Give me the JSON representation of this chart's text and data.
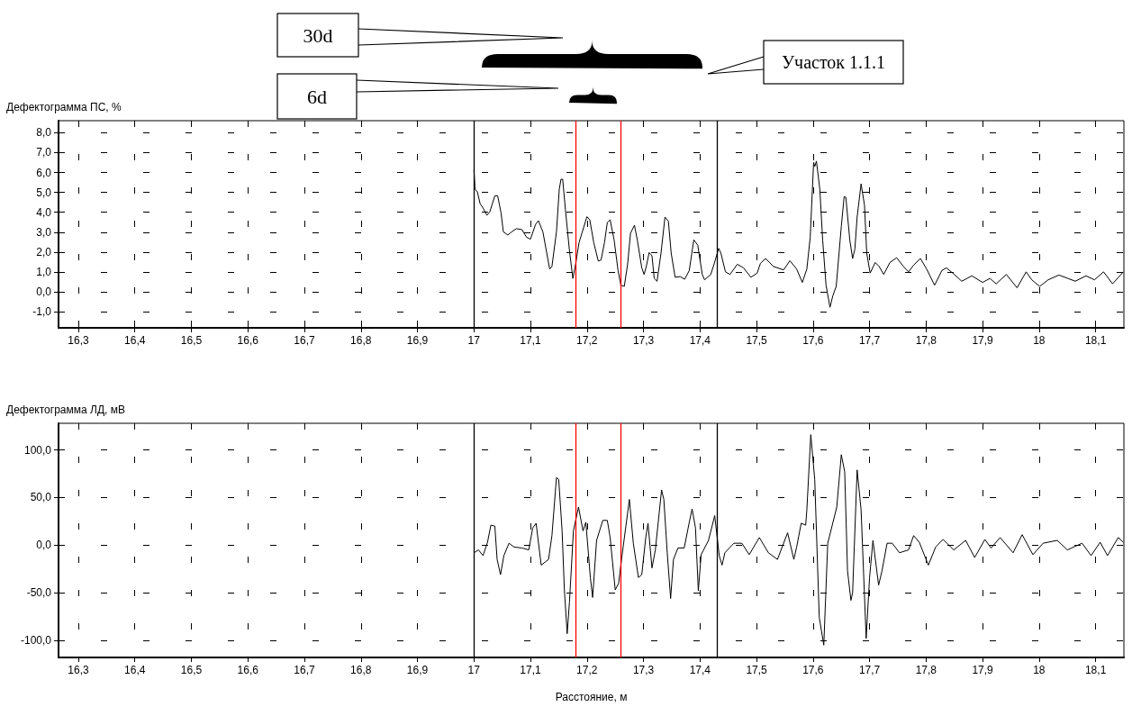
{
  "chart_data": [
    {
      "type": "line",
      "ylabel": "Дефектограмма ПС, %",
      "annotations": [
        "30d",
        "6d",
        "Участок 1.1.1"
      ],
      "xlim": [
        16.265,
        18.15
      ],
      "ylim": [
        -1.8,
        8.6
      ],
      "xticks": [
        {
          "value": 16.3,
          "label": "16,3"
        },
        {
          "value": 16.4,
          "label": "16,4"
        },
        {
          "value": 16.5,
          "label": "16,5"
        },
        {
          "value": 16.6,
          "label": "16,6"
        },
        {
          "value": 16.7,
          "label": "16,7"
        },
        {
          "value": 16.8,
          "label": "16,8"
        },
        {
          "value": 16.9,
          "label": "16,9"
        },
        {
          "value": 17,
          "label": "17"
        },
        {
          "value": 17.1,
          "label": "17,1"
        },
        {
          "value": 17.2,
          "label": "17,2"
        },
        {
          "value": 17.3,
          "label": "17,3"
        },
        {
          "value": 17.4,
          "label": "17,4"
        },
        {
          "value": 17.5,
          "label": "17,5"
        },
        {
          "value": 17.6,
          "label": "17,6"
        },
        {
          "value": 17.7,
          "label": "17,7"
        },
        {
          "value": 17.8,
          "label": "17,8"
        },
        {
          "value": 17.9,
          "label": "17,9"
        },
        {
          "value": 18,
          "label": "18"
        },
        {
          "value": 18.1,
          "label": "18,1"
        }
      ],
      "yticks": [
        {
          "value": -1,
          "label": "-1,0"
        },
        {
          "value": 0,
          "label": "0,0"
        },
        {
          "value": 1,
          "label": "1,0"
        },
        {
          "value": 2,
          "label": "2,0"
        },
        {
          "value": 3,
          "label": "3,0"
        },
        {
          "value": 4,
          "label": "4,0"
        },
        {
          "value": 5,
          "label": "5,0"
        },
        {
          "value": 6,
          "label": "6,0"
        },
        {
          "value": 7,
          "label": "7,0"
        },
        {
          "value": 8,
          "label": "8,0"
        }
      ],
      "grid": true,
      "marker": "none",
      "line_style": "solid",
      "ref_lines": [
        {
          "axis": "x",
          "value": 17.005,
          "color": "#000000"
        },
        {
          "axis": "x",
          "value": 17.425,
          "color": "#000000"
        },
        {
          "axis": "x",
          "value": 17.175,
          "color": "#ff0000"
        },
        {
          "axis": "x",
          "value": 17.256,
          "color": "#ff0000"
        }
      ],
      "series": [
        {
          "color": "#000000",
          "x": [
            17.0,
            17.002,
            17.006,
            17.011,
            17.016,
            17.023,
            17.028,
            17.037,
            17.042,
            17.048,
            17.052,
            17.06,
            17.067,
            17.075,
            17.085,
            17.093,
            17.1,
            17.109,
            17.114,
            17.122,
            17.134,
            17.138,
            17.146,
            17.151,
            17.154,
            17.157,
            17.162,
            17.169,
            17.175,
            17.18,
            17.186,
            17.191,
            17.2,
            17.205,
            17.212,
            17.22,
            17.225,
            17.231,
            17.236,
            17.241,
            17.248,
            17.255,
            17.26,
            17.266,
            17.272,
            17.277,
            17.284,
            17.289,
            17.297,
            17.301,
            17.305,
            17.31,
            17.315,
            17.319,
            17.324,
            17.331,
            17.338,
            17.344,
            17.349,
            17.356,
            17.365,
            17.373,
            17.381,
            17.389,
            17.396,
            17.404,
            17.408,
            17.419,
            17.425,
            17.433,
            17.437,
            17.445,
            17.453,
            17.466,
            17.477,
            17.49,
            17.501,
            17.507,
            17.516,
            17.53,
            17.548,
            17.559,
            17.571,
            17.581,
            17.589,
            17.595,
            17.601,
            17.603,
            17.606,
            17.612,
            17.617,
            17.623,
            17.63,
            17.635,
            17.641,
            17.65,
            17.655,
            17.658,
            17.665,
            17.67,
            17.674,
            17.678,
            17.685,
            17.691,
            17.695,
            17.701,
            17.71,
            17.717,
            17.725,
            17.736,
            17.748,
            17.76,
            17.769,
            17.778,
            17.79,
            17.801,
            17.815,
            17.828,
            17.836,
            17.85,
            17.863,
            17.881,
            17.9,
            17.913,
            17.924,
            17.942,
            17.961,
            17.977,
            17.987,
            18.001,
            18.016,
            18.035,
            18.051,
            18.064,
            18.083,
            18.098,
            18.114,
            18.13,
            18.149
          ],
          "values": [
            6.13,
            5.16,
            5.03,
            4.43,
            4.22,
            3.85,
            4.02,
            4.83,
            4.83,
            3.96,
            3.02,
            2.86,
            3.02,
            3.18,
            3.13,
            2.75,
            2.65,
            3.39,
            3.58,
            3.02,
            1.15,
            1.28,
            3.02,
            5.16,
            5.66,
            5.66,
            4.09,
            2.08,
            0.68,
            1.41,
            2.48,
            2.95,
            3.78,
            3.62,
            2.48,
            1.55,
            1.61,
            2.48,
            3.49,
            3.62,
            2.62,
            1.08,
            0.34,
            0.28,
            1.41,
            2.95,
            3.35,
            2.62,
            1.21,
            0.88,
            1.28,
            1.98,
            1.82,
            0.68,
            0.54,
            1.95,
            3.76,
            3.56,
            1.95,
            0.74,
            0.77,
            0.64,
            1.08,
            2.62,
            2.35,
            0.88,
            0.61,
            0.88,
            1.41,
            2.19,
            1.95,
            1.01,
            0.88,
            1.39,
            1.21,
            0.74,
            0.94,
            1.44,
            1.68,
            1.28,
            1.11,
            1.57,
            1.15,
            0.48,
            1.15,
            2.75,
            6.5,
            6.3,
            6.57,
            5.16,
            2.62,
            0.34,
            -0.77,
            -0.19,
            0.28,
            3.29,
            4.79,
            4.76,
            2.62,
            1.68,
            2.15,
            3.76,
            5.43,
            4.36,
            1.95,
            0.95,
            1.48,
            1.28,
            0.88,
            1.48,
            1.72,
            1.28,
            1.01,
            1.35,
            1.68,
            1.15,
            0.34,
            1.08,
            1.21,
            0.88,
            0.54,
            0.81,
            0.48,
            0.68,
            0.41,
            0.88,
            0.21,
            1.01,
            0.61,
            0.28,
            0.61,
            0.85,
            0.68,
            0.54,
            0.81,
            0.61,
            1.01,
            0.41,
            1.01
          ]
        }
      ]
    },
    {
      "type": "line",
      "ylabel": "Дефектограмма ЛД, мВ",
      "xlabel": "Расстояние, м",
      "xlim": [
        16.265,
        18.15
      ],
      "ylim": [
        -118,
        128
      ],
      "xticks": [
        {
          "value": 16.3,
          "label": "16,3"
        },
        {
          "value": 16.4,
          "label": "16,4"
        },
        {
          "value": 16.5,
          "label": "16,5"
        },
        {
          "value": 16.6,
          "label": "16,6"
        },
        {
          "value": 16.7,
          "label": "16,7"
        },
        {
          "value": 16.8,
          "label": "16,8"
        },
        {
          "value": 16.9,
          "label": "16,9"
        },
        {
          "value": 17,
          "label": "17"
        },
        {
          "value": 17.1,
          "label": "17,1"
        },
        {
          "value": 17.2,
          "label": "17,2"
        },
        {
          "value": 17.3,
          "label": "17,3"
        },
        {
          "value": 17.4,
          "label": "17,4"
        },
        {
          "value": 17.5,
          "label": "17,5"
        },
        {
          "value": 17.6,
          "label": "17,6"
        },
        {
          "value": 17.7,
          "label": "17,7"
        },
        {
          "value": 17.8,
          "label": "17,8"
        },
        {
          "value": 17.9,
          "label": "17,9"
        },
        {
          "value": 18,
          "label": "18"
        },
        {
          "value": 18.1,
          "label": "18,1"
        }
      ],
      "yticks": [
        {
          "value": -100,
          "label": "-100,0"
        },
        {
          "value": -50,
          "label": "-50,0"
        },
        {
          "value": 0,
          "label": "0,0"
        },
        {
          "value": 50,
          "label": "50,0"
        },
        {
          "value": 100,
          "label": "100,0"
        }
      ],
      "grid": true,
      "marker": "none",
      "line_style": "solid",
      "ref_lines": [
        {
          "axis": "x",
          "value": 17.005,
          "color": "#000000"
        },
        {
          "axis": "x",
          "value": 17.425,
          "color": "#000000"
        },
        {
          "axis": "x",
          "value": 17.175,
          "color": "#ff0000"
        },
        {
          "axis": "x",
          "value": 17.256,
          "color": "#ff0000"
        }
      ],
      "series": [
        {
          "color": "#000000",
          "x": [
            17.0,
            17.008,
            17.016,
            17.024,
            17.03,
            17.037,
            17.041,
            17.047,
            17.053,
            17.062,
            17.071,
            17.085,
            17.097,
            17.104,
            17.11,
            17.119,
            17.132,
            17.138,
            17.146,
            17.15,
            17.156,
            17.16,
            17.165,
            17.169,
            17.176,
            17.185,
            17.193,
            17.198,
            17.206,
            17.21,
            17.217,
            17.228,
            17.236,
            17.241,
            17.25,
            17.256,
            17.262,
            17.275,
            17.282,
            17.291,
            17.297,
            17.304,
            17.308,
            17.315,
            17.321,
            17.332,
            17.336,
            17.342,
            17.348,
            17.353,
            17.361,
            17.372,
            17.381,
            17.386,
            17.392,
            17.397,
            17.402,
            17.415,
            17.426,
            17.434,
            17.439,
            17.444,
            17.46,
            17.474,
            17.487,
            17.505,
            17.521,
            17.537,
            17.555,
            17.566,
            17.571,
            17.579,
            17.587,
            17.589,
            17.596,
            17.603,
            17.611,
            17.619,
            17.626,
            17.634,
            17.642,
            17.65,
            17.656,
            17.661,
            17.667,
            17.67,
            17.678,
            17.685,
            17.694,
            17.7,
            17.706,
            17.716,
            17.722,
            17.731,
            17.74,
            17.753,
            17.769,
            17.778,
            17.788,
            17.804,
            17.817,
            17.83,
            17.849,
            17.87,
            17.886,
            17.904,
            17.915,
            17.931,
            17.954,
            17.97,
            17.989,
            18.007,
            18.032,
            18.05,
            18.076,
            18.092,
            18.108,
            18.121,
            18.14,
            18.149
          ],
          "values": [
            -8,
            -5,
            -11,
            3,
            21,
            20,
            -15,
            -31,
            -11,
            2,
            -2,
            -3,
            -5,
            18,
            23,
            -21,
            -15,
            10,
            71,
            69,
            15,
            -47,
            -93,
            -60,
            15,
            40,
            15,
            24,
            -34,
            -55,
            5,
            26,
            26,
            8,
            -47,
            -40,
            -11,
            48,
            2,
            -34,
            -31,
            8,
            23,
            -24,
            -5,
            58,
            48,
            -8,
            -56,
            -15,
            -3,
            -3,
            24,
            38,
            18,
            -48,
            -10,
            5,
            31,
            -11,
            -21,
            -8,
            2,
            2,
            -10,
            8,
            -8,
            -15,
            13,
            -15,
            -2,
            23,
            21,
            37,
            116,
            69,
            -76,
            -105,
            2,
            21,
            40,
            95,
            77,
            -27,
            -58,
            -50,
            79,
            37,
            -98,
            -34,
            5,
            -42,
            -27,
            2,
            2,
            -8,
            -5,
            10,
            3,
            -21,
            -2,
            6,
            -5,
            5,
            -13,
            6,
            -3,
            8,
            -8,
            11,
            -10,
            2,
            5,
            -5,
            2,
            -11,
            3,
            -11,
            8,
            3
          ]
        }
      ]
    }
  ]
}
